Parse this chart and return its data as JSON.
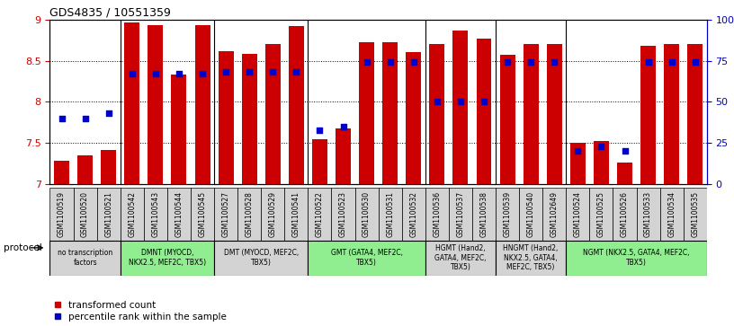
{
  "title": "GDS4835 / 10551359",
  "samples": [
    "GSM1100519",
    "GSM1100520",
    "GSM1100521",
    "GSM1100542",
    "GSM1100543",
    "GSM1100544",
    "GSM1100545",
    "GSM1100527",
    "GSM1100528",
    "GSM1100529",
    "GSM1100541",
    "GSM1100522",
    "GSM1100523",
    "GSM1100530",
    "GSM1100531",
    "GSM1100532",
    "GSM1100536",
    "GSM1100537",
    "GSM1100538",
    "GSM1100539",
    "GSM1100540",
    "GSM1102649",
    "GSM1100524",
    "GSM1100525",
    "GSM1100526",
    "GSM1100533",
    "GSM1100534",
    "GSM1100535"
  ],
  "bar_values": [
    7.28,
    7.35,
    7.42,
    8.97,
    8.93,
    8.33,
    8.93,
    8.62,
    8.58,
    8.7,
    8.92,
    7.55,
    7.68,
    8.72,
    8.72,
    8.6,
    8.7,
    8.87,
    8.77,
    8.57,
    8.7,
    8.7,
    7.5,
    7.52,
    7.26,
    8.68,
    8.7,
    8.7
  ],
  "percentile_values": [
    40,
    40,
    43,
    67,
    67,
    67,
    67,
    68,
    68,
    68,
    68,
    33,
    35,
    74,
    74,
    74,
    50,
    50,
    50,
    74,
    74,
    74,
    20,
    23,
    20,
    74,
    74,
    74
  ],
  "ymin": 7.0,
  "ymax": 9.0,
  "ytick_vals": [
    7.0,
    7.5,
    8.0,
    8.5,
    9.0
  ],
  "right_ytick_vals": [
    0,
    25,
    50,
    75,
    100
  ],
  "bar_color": "#CC0000",
  "dot_color": "#0000CC",
  "groups": [
    {
      "label": "no transcription\nfactors",
      "start": 0,
      "end": 3,
      "color": "#D3D3D3"
    },
    {
      "label": "DMNT (MYOCD,\nNKX2.5, MEF2C, TBX5)",
      "start": 3,
      "end": 7,
      "color": "#90EE90"
    },
    {
      "label": "DMT (MYOCD, MEF2C,\nTBX5)",
      "start": 7,
      "end": 11,
      "color": "#D3D3D3"
    },
    {
      "label": "GMT (GATA4, MEF2C,\nTBX5)",
      "start": 11,
      "end": 16,
      "color": "#90EE90"
    },
    {
      "label": "HGMT (Hand2,\nGATA4, MEF2C,\nTBX5)",
      "start": 16,
      "end": 19,
      "color": "#D3D3D3"
    },
    {
      "label": "HNGMT (Hand2,\nNKX2.5, GATA4,\nMEF2C, TBX5)",
      "start": 19,
      "end": 22,
      "color": "#D3D3D3"
    },
    {
      "label": "NGMT (NKX2.5, GATA4, MEF2C,\nTBX5)",
      "start": 22,
      "end": 28,
      "color": "#90EE90"
    }
  ],
  "legend_bar_label": "transformed count",
  "legend_dot_label": "percentile rank within the sample",
  "protocol_label": "protocol",
  "group_boundaries": [
    3,
    7,
    11,
    16,
    19,
    22
  ]
}
